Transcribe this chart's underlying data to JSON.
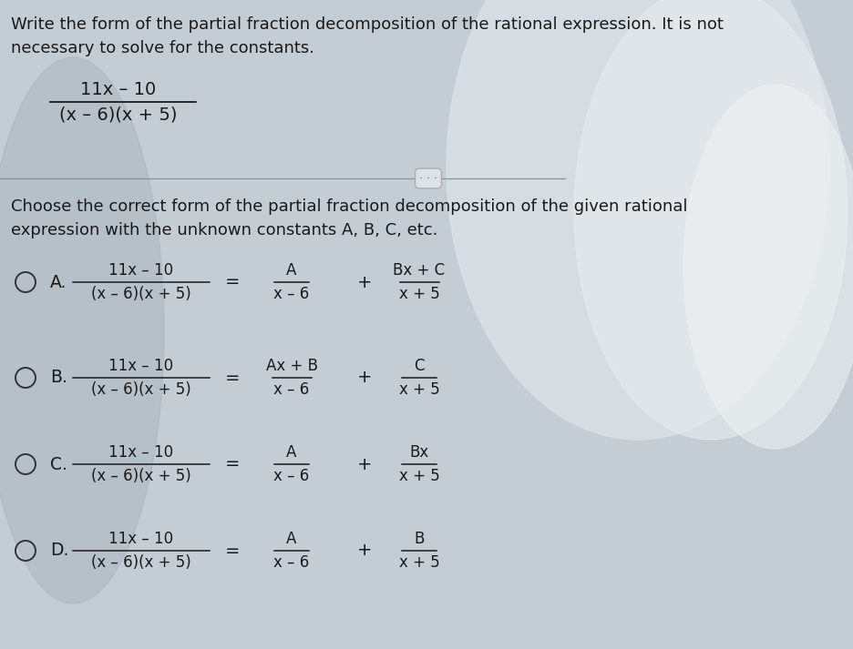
{
  "fig_width": 9.36,
  "fig_height": 7.13,
  "bg_color_left": "#b8c4cc",
  "bg_color_right": "#d8dfe4",
  "text_color": "#1a1a1a",
  "title_line1": "Write the form of the partial fraction decomposition of the rational expression. It is not",
  "title_line2": "necessary to solve for the constants.",
  "question_line1": "Choose the correct form of the partial fraction decomposition of the given rational",
  "question_line2": "expression with the unknown constants A, B, C, etc.",
  "lhs_num": "11x – 10",
  "lhs_den": "(x – 6)(x + 5)",
  "options": [
    {
      "label": "A.",
      "rhs1_num": "A",
      "rhs1_den": "x – 6",
      "rhs2_num": "Bx + C",
      "rhs2_den": "x + 5"
    },
    {
      "label": "B.",
      "rhs1_num": "Ax + B",
      "rhs1_den": "x – 6",
      "rhs2_num": "C",
      "rhs2_den": "x + 5"
    },
    {
      "label": "C.",
      "rhs1_num": "A",
      "rhs1_den": "x – 6",
      "rhs2_num": "Bx",
      "rhs2_den": "x + 5"
    },
    {
      "label": "D.",
      "rhs1_num": "A",
      "rhs1_den": "x – 6",
      "rhs2_num": "B",
      "rhs2_den": "x + 5"
    }
  ]
}
